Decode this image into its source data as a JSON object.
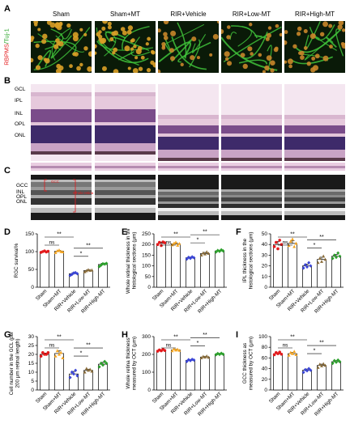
{
  "panel_labels": [
    "A",
    "B",
    "C",
    "D",
    "E",
    "F",
    "G",
    "H",
    "I"
  ],
  "groups": [
    "Sham",
    "Sham+MT",
    "RIR+Vehicle",
    "RIR+Low-MT",
    "RIR+High-MT"
  ],
  "row_a_label": {
    "part1": "RBPMS",
    "part2": "/Tuj-1"
  },
  "row_b_layers": [
    "GCL",
    "IPL",
    "INL",
    "OPL",
    "ONL"
  ],
  "row_c_layers": [
    "GCC",
    "INL",
    "OPL",
    "ONL"
  ],
  "row_c_overlay": [
    "GCC",
    "Whole retina"
  ],
  "colors": {
    "sham": "#e31a1c",
    "sham_mt": "#f5a623",
    "vehicle": "#3b46d6",
    "low": "#8a6d3b",
    "high": "#2ca02c"
  },
  "chart_data": [
    {
      "panel": "D",
      "type": "bar",
      "ylabel": "RGC survival%",
      "ylim": [
        0,
        150
      ],
      "yticks": [
        0,
        50,
        100,
        150
      ],
      "categories": [
        "Sham",
        "Sham+MT",
        "RIR+Vehicle",
        "RIR+Low-MT",
        "RIR+High-MT"
      ],
      "values": [
        100,
        101,
        38,
        47,
        64
      ],
      "points": [
        [
          98,
          100,
          102,
          99,
          101
        ],
        [
          97,
          102,
          104,
          100,
          99
        ],
        [
          33,
          36,
          40,
          41,
          38
        ],
        [
          43,
          46,
          49,
          47,
          48
        ],
        [
          58,
          62,
          66,
          65,
          67
        ]
      ],
      "sig": [
        {
          "a": 0,
          "b": 1,
          "label": "ns"
        },
        {
          "a": 0,
          "b": 2,
          "label": "**"
        },
        {
          "a": 2,
          "b": 3,
          "label": "*"
        },
        {
          "a": 2,
          "b": 4,
          "label": "**"
        }
      ]
    },
    {
      "panel": "E",
      "type": "bar",
      "ylabel": "Whole retinal thickness in the histological sections (μm)",
      "ylim": [
        0,
        250
      ],
      "yticks": [
        0,
        50,
        100,
        150,
        200,
        250
      ],
      "categories": [
        "Sham",
        "Sham+MT",
        "RIR+Vehicle",
        "RIR+Low-MT",
        "RIR+High-MT"
      ],
      "values": [
        205,
        203,
        138,
        158,
        170
      ],
      "points": [
        [
          200,
          210,
          195,
          212,
          208
        ],
        [
          198,
          205,
          210,
          196,
          204
        ],
        [
          132,
          140,
          135,
          142,
          138
        ],
        [
          150,
          160,
          155,
          165,
          158
        ],
        [
          165,
          172,
          168,
          175,
          170
        ]
      ],
      "sig": [
        {
          "a": 0,
          "b": 1,
          "label": "ns"
        },
        {
          "a": 0,
          "b": 2,
          "label": "**"
        },
        {
          "a": 2,
          "b": 3,
          "label": "*"
        },
        {
          "a": 2,
          "b": 4,
          "label": "**"
        }
      ]
    },
    {
      "panel": "F",
      "type": "bar",
      "ylabel": "IPL thickness in the histological sections (μm)",
      "ylim": [
        0,
        50
      ],
      "yticks": [
        0,
        10,
        20,
        30,
        40,
        50
      ],
      "categories": [
        "Sham",
        "Sham+MT",
        "RIR+Vehicle",
        "RIR+Low-MT",
        "RIR+High-MT"
      ],
      "values": [
        40,
        41,
        20,
        26,
        29
      ],
      "points": [
        [
          38,
          42,
          36,
          44,
          40
        ],
        [
          39,
          43,
          45,
          38,
          41
        ],
        [
          18,
          21,
          19,
          23,
          20
        ],
        [
          23,
          27,
          24,
          29,
          26
        ],
        [
          27,
          30,
          28,
          32,
          29
        ]
      ],
      "sig": [
        {
          "a": 0,
          "b": 1,
          "label": "ns"
        },
        {
          "a": 0,
          "b": 2,
          "label": "**"
        },
        {
          "a": 2,
          "b": 3,
          "label": "*"
        },
        {
          "a": 2,
          "b": 4,
          "label": "**"
        }
      ]
    },
    {
      "panel": "G",
      "type": "bar",
      "ylabel": "Cell number in the GCL (per 200 μm retinal length)",
      "ylim": [
        0,
        30
      ],
      "yticks": [
        0,
        5,
        10,
        15,
        20,
        25,
        30
      ],
      "categories": [
        "Sham",
        "Sham+MT",
        "RIR+Vehicle",
        "RIR+Low-MT",
        "RIR+High-MT"
      ],
      "values": [
        20,
        20.5,
        9,
        11,
        14.5
      ],
      "points": [
        [
          19,
          21,
          20,
          20,
          21
        ],
        [
          19,
          22,
          20,
          21,
          18
        ],
        [
          7,
          10,
          9,
          11,
          8
        ],
        [
          10,
          12,
          11,
          11.5,
          10.5
        ],
        [
          13,
          15,
          14,
          16,
          15
        ]
      ],
      "sig": [
        {
          "a": 0,
          "b": 1,
          "label": "ns"
        },
        {
          "a": 0,
          "b": 2,
          "label": "**"
        },
        {
          "a": 2,
          "b": 3,
          "label": "*"
        },
        {
          "a": 2,
          "b": 4,
          "label": "**"
        }
      ]
    },
    {
      "panel": "H",
      "type": "bar",
      "ylabel": "Whole retina thickness measured by OCT (μm)",
      "ylim": [
        0,
        300
      ],
      "yticks": [
        0,
        100,
        200,
        300
      ],
      "categories": [
        "Sham",
        "Sham+MT",
        "RIR+Vehicle",
        "RIR+Low-MT",
        "RIR+High-MT"
      ],
      "values": [
        222,
        225,
        167,
        185,
        202
      ],
      "points": [
        [
          218,
          225,
          220,
          228,
          222
        ],
        [
          220,
          230,
          224,
          228,
          222
        ],
        [
          160,
          170,
          165,
          172,
          168
        ],
        [
          180,
          188,
          184,
          190,
          183
        ],
        [
          198,
          205,
          200,
          206,
          201
        ]
      ],
      "sig": [
        {
          "a": 0,
          "b": 1,
          "label": "ns"
        },
        {
          "a": 0,
          "b": 2,
          "label": "**"
        },
        {
          "a": 2,
          "b": 3,
          "label": "*"
        },
        {
          "a": 2,
          "b": 4,
          "label": "**"
        }
      ]
    },
    {
      "panel": "I",
      "type": "bar",
      "ylabel": "GCC thickness as measured by OCT (μm)",
      "ylim": [
        0,
        100
      ],
      "yticks": [
        0,
        20,
        40,
        60,
        80,
        100
      ],
      "categories": [
        "Sham",
        "Sham+MT",
        "RIR+Vehicle",
        "RIR+Low-MT",
        "RIR+High-MT"
      ],
      "values": [
        68,
        68,
        37,
        46,
        53
      ],
      "points": [
        [
          66,
          70,
          68,
          71,
          67
        ],
        [
          65,
          70,
          68,
          72,
          66
        ],
        [
          33,
          38,
          36,
          40,
          37
        ],
        [
          42,
          48,
          45,
          49,
          46
        ],
        [
          50,
          55,
          52,
          56,
          53
        ]
      ],
      "sig": [
        {
          "a": 0,
          "b": 1,
          "label": "ns"
        },
        {
          "a": 0,
          "b": 2,
          "label": "**"
        },
        {
          "a": 2,
          "b": 3,
          "label": "*"
        },
        {
          "a": 2,
          "b": 4,
          "label": "**"
        }
      ]
    }
  ]
}
